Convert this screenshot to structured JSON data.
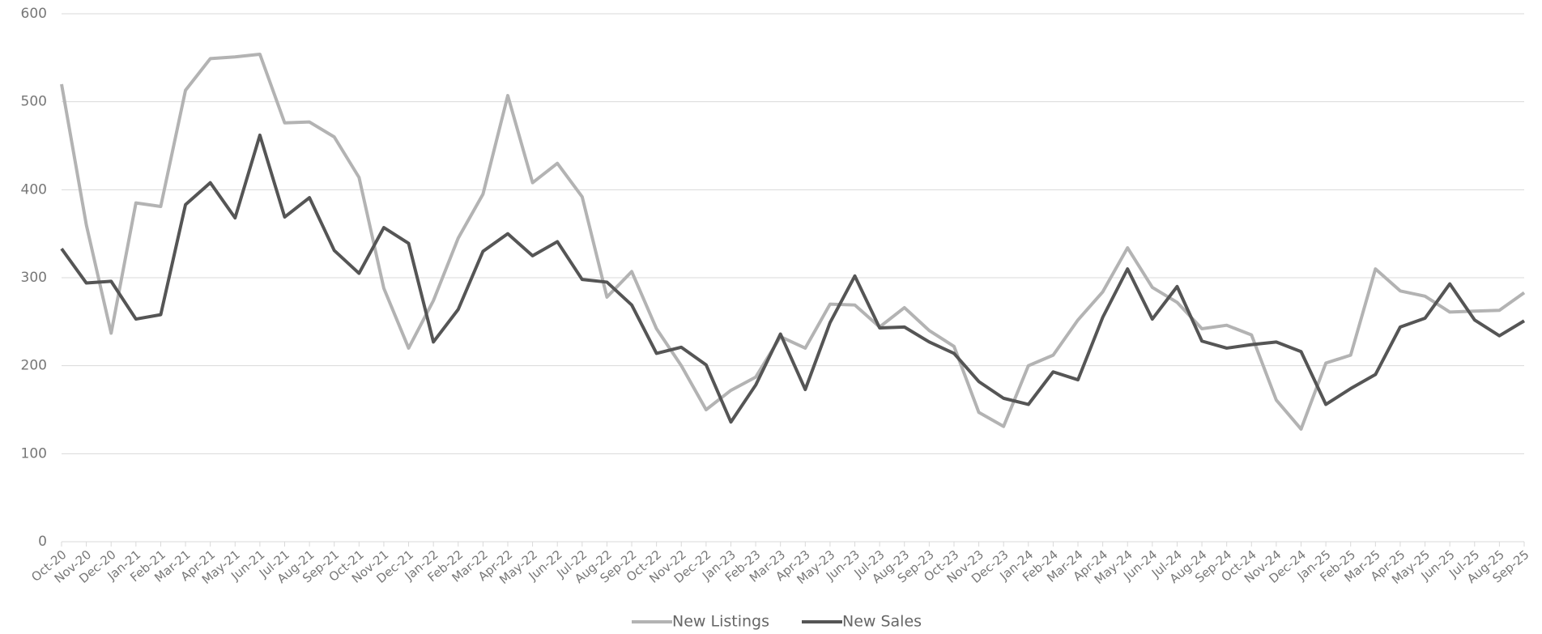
{
  "chart_data": {
    "type": "line",
    "categories": [
      "Oct-20",
      "Nov-20",
      "Dec-20",
      "Jan-21",
      "Feb-21",
      "Mar-21",
      "Apr-21",
      "May-21",
      "Jun-21",
      "Jul-21",
      "Aug-21",
      "Sep-21",
      "Oct-21",
      "Nov-21",
      "Dec-21",
      "Jan-22",
      "Feb-22",
      "Mar-22",
      "Apr-22",
      "May-22",
      "Jun-22",
      "Jul-22",
      "Aug-22",
      "Sep-22",
      "Oct-22",
      "Nov-22",
      "Dec-22",
      "Jan-23",
      "Feb-23",
      "Mar-23",
      "Apr-23",
      "May-23",
      "Jun-23",
      "Jul-23",
      "Aug-23",
      "Sep-23",
      "Oct-23",
      "Nov-23",
      "Dec-23",
      "Jan-24",
      "Feb-24",
      "Mar-24",
      "Apr-24",
      "May-24",
      "Jun-24",
      "Jul-24",
      "Aug-24",
      "Sep-24",
      "Oct-24",
      "Nov-24",
      "Dec-24",
      "Jan-25",
      "Feb-25",
      "Mar-25",
      "Apr-25",
      "May-25",
      "Jun-25",
      "Jul-25",
      "Aug-25",
      "Sep-25"
    ],
    "series": [
      {
        "name": "New Listings",
        "color": "#b3b3b3",
        "values": [
          520,
          360,
          237,
          385,
          381,
          513,
          549,
          551,
          554,
          476,
          477,
          460,
          414,
          288,
          220,
          274,
          345,
          395,
          507,
          408,
          430,
          392,
          278,
          307,
          242,
          200,
          150,
          172,
          187,
          233,
          220,
          270,
          269,
          244,
          266,
          240,
          222,
          147,
          131,
          200,
          212,
          252,
          284,
          334,
          289,
          272,
          242,
          246,
          235,
          161,
          128,
          203,
          212,
          310,
          285,
          279,
          261,
          262,
          263,
          283
        ]
      },
      {
        "name": "New Sales",
        "color": "#555555",
        "values": [
          333,
          294,
          296,
          253,
          258,
          383,
          408,
          368,
          462,
          369,
          391,
          331,
          305,
          357,
          339,
          227,
          264,
          330,
          350,
          325,
          341,
          298,
          295,
          269,
          214,
          221,
          201,
          136,
          178,
          236,
          173,
          249,
          302,
          243,
          244,
          227,
          214,
          182,
          163,
          156,
          193,
          184,
          255,
          310,
          253,
          290,
          228,
          220,
          224,
          227,
          216,
          156,
          174,
          190,
          244,
          254,
          293,
          252,
          234,
          251
        ]
      }
    ],
    "ylim": [
      0,
      600
    ],
    "yticks": [
      0,
      100,
      200,
      300,
      400,
      500,
      600
    ],
    "grid": true
  }
}
